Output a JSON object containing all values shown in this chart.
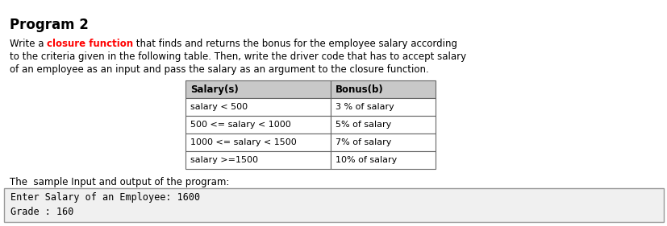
{
  "title": "Program 2",
  "highlight_text": "closure function",
  "highlight_color": "#FF0000",
  "para_line1_pre": "Write a ",
  "para_line1_post": " that finds and returns the bonus for the employee salary according",
  "para_line2": "to the criteria given in the following table. Then, write the driver code that has to accept salary",
  "para_line3": "of an employee as an input and pass the salary as an argument to the closure function.",
  "table_headers": [
    "Salary(s)",
    "Bonus(b)"
  ],
  "table_rows": [
    [
      "salary < 500",
      "3 % of salary"
    ],
    [
      "500 <= salary < 1000",
      "5% of salary"
    ],
    [
      "1000 <= salary < 1500",
      "7% of salary"
    ],
    [
      "salary >=1500",
      "10% of salary"
    ]
  ],
  "table_header_bg": "#C8C8C8",
  "table_row_bg": "#FFFFFF",
  "sample_label": "The  sample Input and output of the program:",
  "code_lines": [
    "Enter Salary of an Employee: 1600",
    "Grade : 160"
  ],
  "code_box_bg": "#F0F0F0",
  "code_box_border": "#999999",
  "bg_color": "#FFFFFF",
  "text_color": "#000000",
  "font_size_title": 12,
  "font_size_body": 8.5,
  "font_size_code": 8.5,
  "fig_width": 8.28,
  "fig_height": 2.81,
  "dpi": 100
}
